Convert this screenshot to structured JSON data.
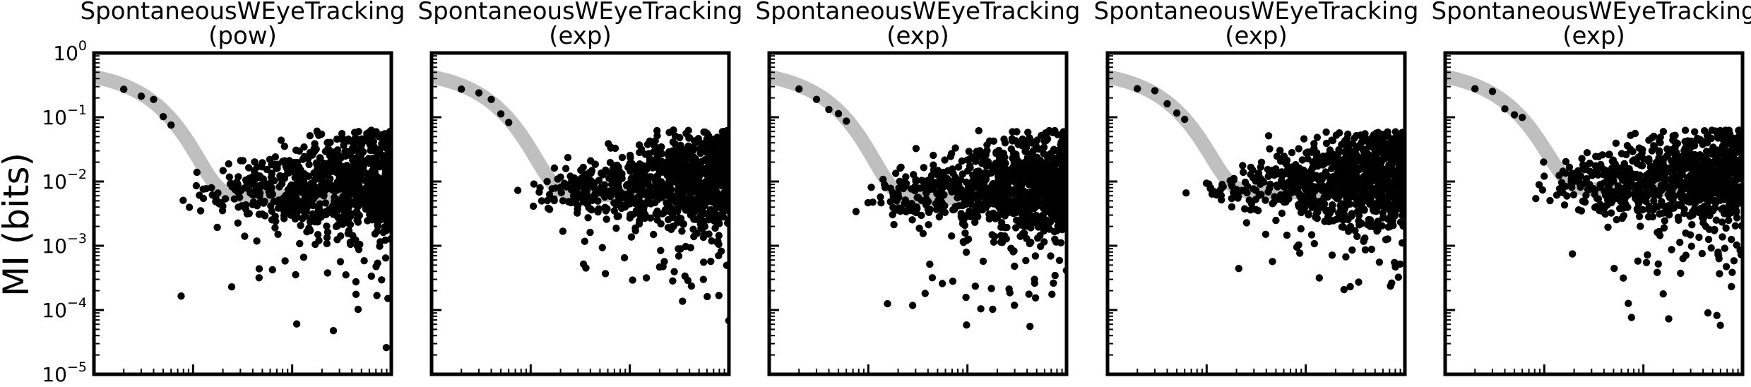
{
  "figure": {
    "ylabel": "MI (bits)",
    "y_scale": "log",
    "y_tick_base": "10",
    "y_ticks": [
      {
        "exp": "0",
        "value": 1
      },
      {
        "exp": "−1",
        "value": 0.1
      },
      {
        "exp": "−2",
        "value": 0.01
      },
      {
        "exp": "−3",
        "value": 0.001
      },
      {
        "exp": "−4",
        "value": 0.0001
      },
      {
        "exp": "−5",
        "value": 1e-05
      }
    ],
    "colors": {
      "points": "#000000",
      "fit_band": "#bfbfbf",
      "axes": "#000000"
    }
  },
  "chart_data": [
    {
      "type": "scatter",
      "title": "SpontaneousWEyeTracking",
      "subtitle": "(pow)",
      "x_scale": "log",
      "xlim": [
        1,
        1000
      ],
      "ylim": [
        1e-05,
        1
      ],
      "grid": false,
      "legend": "none",
      "plateau": 0.006,
      "seed": 11
    },
    {
      "type": "scatter",
      "title": "SpontaneousWEyeTracking",
      "subtitle": "(exp)",
      "x_scale": "log",
      "xlim": [
        1,
        1000
      ],
      "ylim": [
        1e-05,
        1
      ],
      "grid": false,
      "legend": "none",
      "plateau": 0.0062,
      "seed": 23
    },
    {
      "type": "scatter",
      "title": "SpontaneousWEyeTracking",
      "subtitle": "(exp)",
      "x_scale": "log",
      "xlim": [
        1,
        1000
      ],
      "ylim": [
        1e-05,
        1
      ],
      "grid": false,
      "legend": "none",
      "plateau": 0.0055,
      "seed": 37
    },
    {
      "type": "scatter",
      "title": "SpontaneousWEyeTracking",
      "subtitle": "(exp)",
      "x_scale": "log",
      "xlim": [
        1,
        1000
      ],
      "ylim": [
        1e-05,
        1
      ],
      "grid": false,
      "legend": "none",
      "plateau": 0.0068,
      "seed": 51
    },
    {
      "type": "scatter",
      "title": "SpontaneousWEyeTracking",
      "subtitle": "(exp)",
      "x_scale": "log",
      "xlim": [
        1,
        1000
      ],
      "ylim": [
        1e-05,
        1
      ],
      "grid": false,
      "legend": "none",
      "plateau": 0.0075,
      "seed": 67
    }
  ]
}
